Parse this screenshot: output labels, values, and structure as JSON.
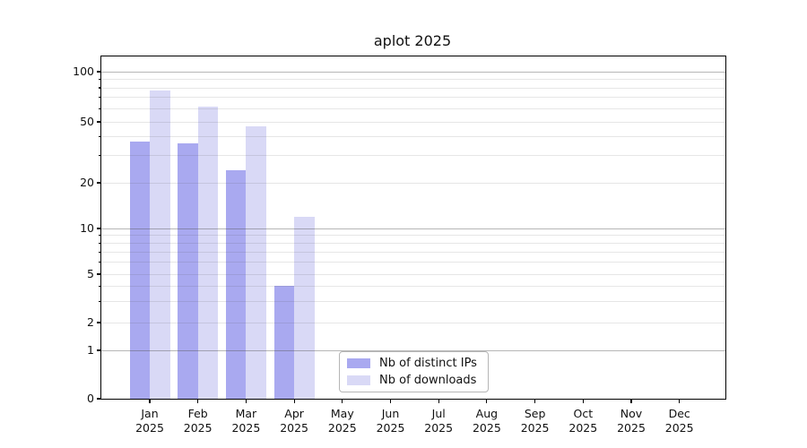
{
  "title": "aplot 2025",
  "chart_data": {
    "type": "bar",
    "title": "aplot 2025",
    "categories": [
      "Jan",
      "Feb",
      "Mar",
      "Apr",
      "May",
      "Jun",
      "Jul",
      "Aug",
      "Sep",
      "Oct",
      "Nov",
      "Dec"
    ],
    "x_tick_second_line": "2025",
    "series": [
      {
        "name": "Nb of distinct IPs",
        "color": "#a9a9f0",
        "values": [
          37,
          36,
          24,
          4,
          null,
          null,
          null,
          null,
          null,
          null,
          null,
          null
        ]
      },
      {
        "name": "Nb of downloads",
        "color": "#d9d9f6",
        "values": [
          77,
          62,
          47,
          12,
          null,
          null,
          null,
          null,
          null,
          null,
          null,
          null
        ]
      }
    ],
    "y_axis": {
      "scale": "log-like",
      "ylim": [
        0,
        100
      ],
      "labeled_ticks": [
        100,
        50,
        20,
        10,
        5,
        2,
        1,
        0
      ],
      "major_gridlines": [
        100,
        10,
        1
      ],
      "minor_gridlines": [
        2,
        3,
        4,
        5,
        6,
        7,
        8,
        9,
        20,
        30,
        40,
        50,
        60,
        70,
        80,
        90
      ]
    },
    "legend": {
      "location": "lower center"
    },
    "grid": true,
    "colors": {
      "background": "#ffffff",
      "axis": "#000000",
      "text": "#111111",
      "major_gridline": "rgba(80,80,80,0.42)",
      "minor_gridline": "rgba(80,80,80,0.14)",
      "legend_border": "#b5b5b5"
    }
  }
}
